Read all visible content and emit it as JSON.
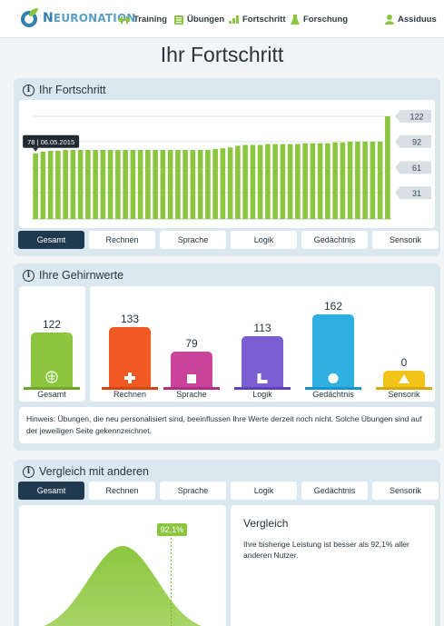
{
  "brand": {
    "name_lead": "N",
    "name_rest": "EURONATION"
  },
  "nav": [
    {
      "label": "Training",
      "icon": "dumbbell-icon"
    },
    {
      "label": "Übungen",
      "icon": "list-icon"
    },
    {
      "label": "Fortschritt",
      "icon": "bars-icon"
    },
    {
      "label": "Forschung",
      "icon": "flask-icon"
    }
  ],
  "user": {
    "name": "Assiduus",
    "icon": "user-icon"
  },
  "page_title": "Ihr Fortschritt",
  "progress_panel": {
    "title": "Ihr Fortschritt",
    "tooltip": "78 | 06.05.2015",
    "tabs": [
      "Gesamt",
      "Rechnen",
      "Sprache",
      "Logik",
      "Gedächtnis",
      "Sensorik"
    ],
    "active_tab": "Gesamt"
  },
  "chart_data": {
    "type": "bar",
    "title": "",
    "xlabel": "",
    "ylabel": "",
    "ylim": [
      0,
      122
    ],
    "y_ticks": [
      31,
      61,
      92,
      122
    ],
    "grid": true,
    "values": [
      78,
      80,
      81,
      81,
      82,
      82,
      82,
      82,
      82,
      82,
      82,
      82,
      82,
      82,
      82,
      82,
      82,
      82,
      82,
      82,
      82,
      82,
      82,
      82,
      83,
      84,
      85,
      87,
      88,
      88,
      88,
      89,
      89,
      89,
      89,
      89,
      90,
      90,
      90,
      90,
      91,
      91,
      92,
      92,
      92,
      92,
      92,
      122
    ],
    "highlighted_point": {
      "index": 0,
      "value": 78,
      "date": "06.05.2015"
    }
  },
  "brain_panel": {
    "title": "Ihre Gehirnwerte",
    "items": [
      {
        "label": "Gesamt",
        "value": "122",
        "color": "#8cc63f",
        "base_color": "#6fa52c",
        "icon": "brain-icon",
        "level": 122
      },
      {
        "label": "Rechnen",
        "value": "133",
        "color": "#f05a22",
        "base_color": "#d14713",
        "icon": "plus-icon",
        "level": 133
      },
      {
        "label": "Sprache",
        "value": "79",
        "color": "#c9449a",
        "base_color": "#a9337f",
        "icon": "square-icon",
        "level": 79
      },
      {
        "label": "Logik",
        "value": "113",
        "color": "#7a5ed2",
        "base_color": "#5d43b5",
        "icon": "corner-icon",
        "level": 113
      },
      {
        "label": "Gedächtnis",
        "value": "162",
        "color": "#2fb0e3",
        "base_color": "#1b93c6",
        "icon": "circle-icon",
        "level": 162
      },
      {
        "label": "Sensorik",
        "value": "0",
        "color": "#f2c318",
        "base_color": "#d8a80a",
        "icon": "triangle-icon",
        "level": 0
      }
    ],
    "hint": "Hinweis: Übungen, die neu personalisiert sind, beeinflussen Ihre Werte derzeit noch nicht. Solche Übungen sind auf der jeweiligen Seite gekennzeichnet."
  },
  "compare_panel": {
    "title": "Vergleich mit anderen",
    "tabs": [
      "Gesamt",
      "Rechnen",
      "Sprache",
      "Logik",
      "Gedächtnis",
      "Sensorik"
    ],
    "active_tab": "Gesamt",
    "percentile_label": "92,1%",
    "percentile": 92.1,
    "box_title": "Vergleich",
    "box_text": "Ihre bisherige Leistung ist besser als 92,1% aller anderen Nutzer."
  }
}
